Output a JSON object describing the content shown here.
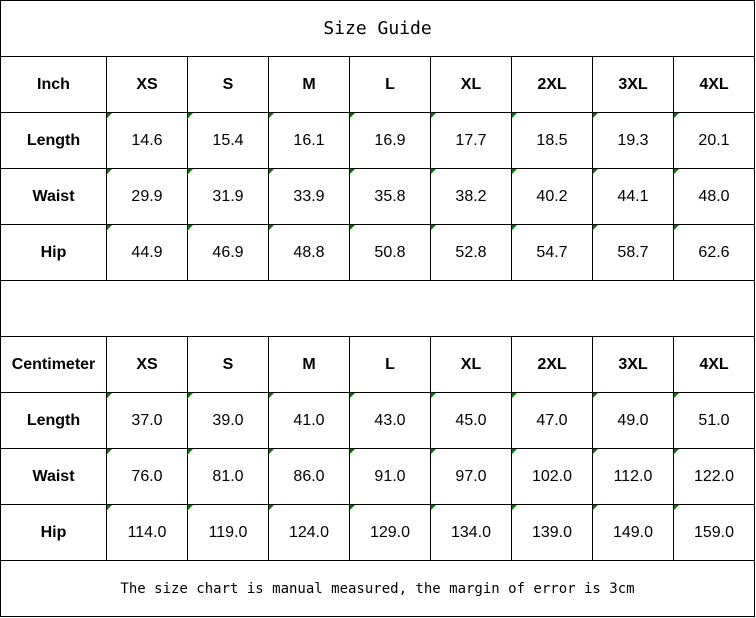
{
  "title": "Size Guide",
  "sizes": [
    "XS",
    "S",
    "M",
    "L",
    "XL",
    "2XL",
    "3XL",
    "4XL"
  ],
  "tables": [
    {
      "unit": "Inch",
      "rows": [
        {
          "label": "Length",
          "values": [
            "14.6",
            "15.4",
            "16.1",
            "16.9",
            "17.7",
            "18.5",
            "19.3",
            "20.1"
          ]
        },
        {
          "label": "Waist",
          "values": [
            "29.9",
            "31.9",
            "33.9",
            "35.8",
            "38.2",
            "40.2",
            "44.1",
            "48.0"
          ]
        },
        {
          "label": "Hip",
          "values": [
            "44.9",
            "46.9",
            "48.8",
            "50.8",
            "52.8",
            "54.7",
            "58.7",
            "62.6"
          ]
        }
      ]
    },
    {
      "unit": "Centimeter",
      "rows": [
        {
          "label": "Length",
          "values": [
            "37.0",
            "39.0",
            "41.0",
            "43.0",
            "45.0",
            "47.0",
            "49.0",
            "51.0"
          ]
        },
        {
          "label": "Waist",
          "values": [
            "76.0",
            "81.0",
            "86.0",
            "91.0",
            "97.0",
            "102.0",
            "112.0",
            "122.0"
          ]
        },
        {
          "label": "Hip",
          "values": [
            "114.0",
            "119.0",
            "124.0",
            "129.0",
            "134.0",
            "139.0",
            "149.0",
            "159.0"
          ]
        }
      ]
    }
  ],
  "note": "The size chart is manual measured, the margin of error is 3cm",
  "colors": {
    "text_number_indicator": "#008000",
    "border": "#000000"
  }
}
